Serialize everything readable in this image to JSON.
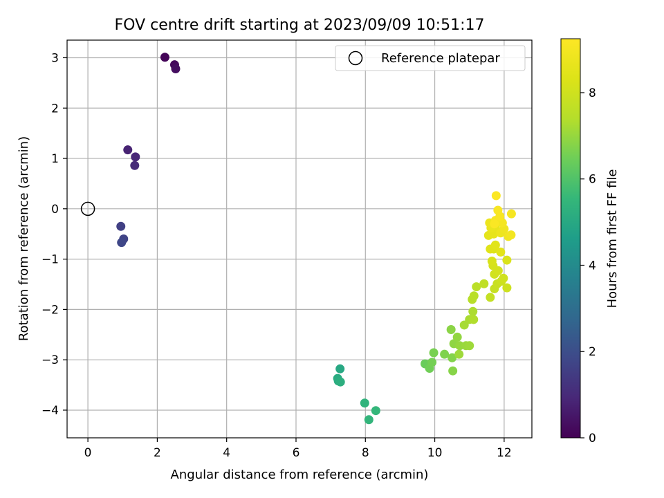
{
  "chart_data": {
    "type": "scatter",
    "title": "FOV centre drift starting at 2023/09/09 10:51:17",
    "xlabel": "Angular distance from reference (arcmin)",
    "ylabel": "Rotation from reference (arcmin)",
    "xlim": [
      -0.6,
      12.8
    ],
    "ylim": [
      -4.55,
      3.35
    ],
    "xticks": [
      0,
      2,
      4,
      6,
      8,
      10,
      12
    ],
    "yticks": [
      -4,
      -3,
      -2,
      -1,
      0,
      1,
      2,
      3
    ],
    "grid": true,
    "legend": {
      "position": "top-right",
      "entries": [
        "Reference platepar"
      ]
    },
    "reference_point": {
      "x": 0,
      "y": 0
    },
    "colorbar": {
      "label": "Hours from first FF file",
      "range": [
        0,
        9.25
      ],
      "ticks": [
        0,
        2,
        4,
        6,
        8
      ],
      "colormap": "viridis"
    },
    "series": [
      {
        "points": [
          [
            2.22,
            3.01,
            0.1
          ],
          [
            2.5,
            2.86,
            0.2
          ],
          [
            2.53,
            2.78,
            0.3
          ],
          [
            1.15,
            1.17,
            0.8
          ],
          [
            1.37,
            1.03,
            0.9
          ],
          [
            1.35,
            0.86,
            1.0
          ],
          [
            0.95,
            -0.35,
            1.6
          ],
          [
            1.03,
            -0.6,
            1.7
          ],
          [
            0.97,
            -0.67,
            1.8
          ],
          [
            7.27,
            -3.18,
            5.0
          ],
          [
            7.2,
            -3.37,
            5.1
          ],
          [
            7.22,
            -3.42,
            5.15
          ],
          [
            7.28,
            -3.44,
            5.2
          ],
          [
            7.98,
            -3.86,
            5.4
          ],
          [
            8.1,
            -4.19,
            5.45
          ],
          [
            8.3,
            -4.01,
            5.5
          ],
          [
            9.72,
            -3.08,
            6.4
          ],
          [
            9.85,
            -3.17,
            6.5
          ],
          [
            9.92,
            -3.05,
            6.55
          ],
          [
            9.97,
            -2.86,
            6.6
          ],
          [
            10.28,
            -2.89,
            6.7
          ],
          [
            10.5,
            -2.96,
            6.75
          ],
          [
            10.52,
            -3.22,
            6.8
          ],
          [
            10.47,
            -2.4,
            6.85
          ],
          [
            10.55,
            -2.68,
            6.9
          ],
          [
            10.65,
            -2.55,
            6.95
          ],
          [
            10.72,
            -2.72,
            7.0
          ],
          [
            10.9,
            -2.72,
            7.05
          ],
          [
            11.0,
            -2.72,
            7.1
          ],
          [
            10.7,
            -2.89,
            7.1
          ],
          [
            10.85,
            -2.31,
            7.2
          ],
          [
            11.0,
            -2.2,
            7.25
          ],
          [
            11.1,
            -2.04,
            7.3
          ],
          [
            11.12,
            -2.2,
            7.35
          ],
          [
            11.08,
            -1.8,
            7.45
          ],
          [
            11.13,
            -1.73,
            7.5
          ],
          [
            11.2,
            -1.55,
            7.55
          ],
          [
            11.42,
            -1.49,
            7.65
          ],
          [
            11.6,
            -1.76,
            7.75
          ],
          [
            11.72,
            -1.59,
            7.8
          ],
          [
            11.8,
            -1.49,
            7.85
          ],
          [
            11.92,
            -1.44,
            7.9
          ],
          [
            12.08,
            -1.57,
            7.95
          ],
          [
            11.98,
            -1.38,
            8.0
          ],
          [
            11.72,
            -1.3,
            8.05
          ],
          [
            11.83,
            -1.23,
            8.1
          ],
          [
            11.68,
            -1.13,
            8.15
          ],
          [
            11.65,
            -1.04,
            8.2
          ],
          [
            12.08,
            -1.02,
            8.25
          ],
          [
            11.7,
            -0.8,
            8.35
          ],
          [
            11.6,
            -0.8,
            8.4
          ],
          [
            11.75,
            -0.72,
            8.45
          ],
          [
            11.9,
            -0.86,
            8.5
          ],
          [
            11.55,
            -0.53,
            8.55
          ],
          [
            11.7,
            -0.5,
            8.6
          ],
          [
            11.75,
            -0.38,
            8.65
          ],
          [
            11.62,
            -0.38,
            8.7
          ],
          [
            11.58,
            -0.28,
            8.75
          ],
          [
            11.9,
            -0.48,
            8.8
          ],
          [
            12.0,
            -0.4,
            8.85
          ],
          [
            12.12,
            -0.55,
            8.9
          ],
          [
            12.2,
            -0.52,
            8.95
          ],
          [
            11.95,
            -0.28,
            9.0
          ],
          [
            12.21,
            -0.1,
            9.05
          ],
          [
            11.75,
            -0.23,
            9.05
          ],
          [
            11.88,
            -0.15,
            9.1
          ],
          [
            11.82,
            -0.03,
            9.1
          ],
          [
            11.72,
            -0.3,
            9.15
          ],
          [
            11.77,
            0.26,
            9.2
          ]
        ]
      }
    ]
  }
}
